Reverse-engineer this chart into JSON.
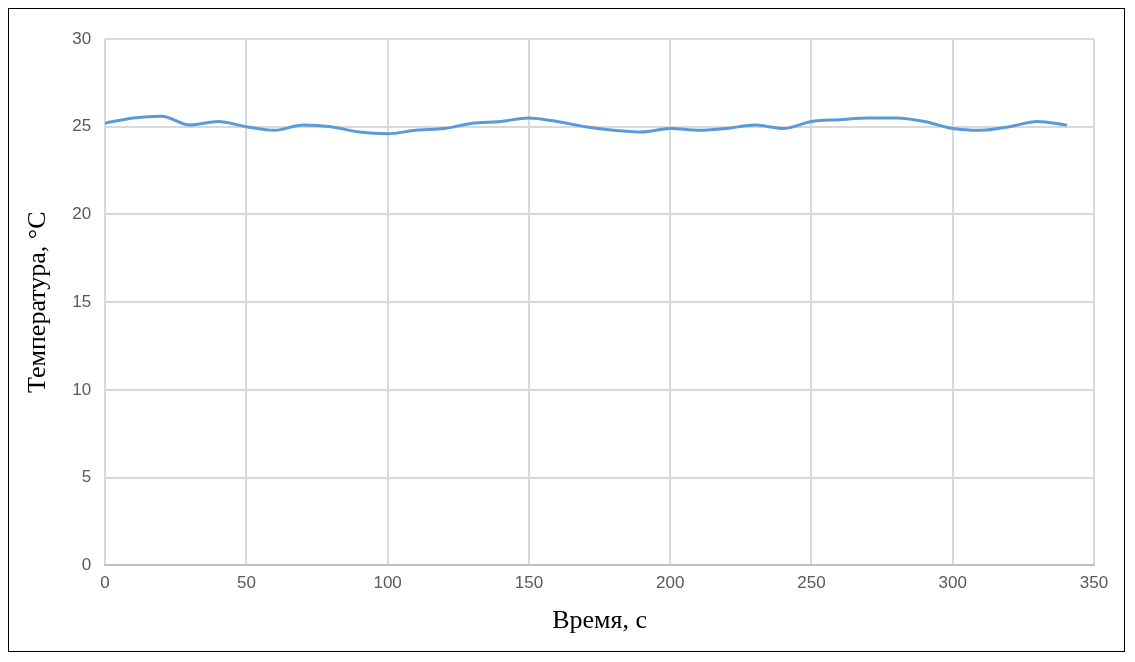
{
  "chart_data": {
    "type": "line",
    "xlabel": "Время, с",
    "ylabel": "Температура, °С",
    "x": [
      0,
      10,
      20,
      30,
      40,
      50,
      60,
      70,
      80,
      90,
      100,
      110,
      120,
      130,
      140,
      150,
      160,
      170,
      180,
      190,
      200,
      210,
      220,
      230,
      240,
      250,
      260,
      270,
      280,
      290,
      300,
      310,
      320,
      330,
      340
    ],
    "series": [
      {
        "color": "#5b9bd5",
        "values": [
          25.2,
          25.5,
          25.6,
          25.1,
          25.3,
          25.0,
          24.8,
          25.1,
          25.0,
          24.7,
          24.6,
          24.8,
          24.9,
          25.2,
          25.3,
          25.5,
          25.3,
          25.0,
          24.8,
          24.7,
          24.9,
          24.8,
          24.9,
          25.1,
          24.9,
          25.3,
          25.4,
          25.5,
          25.5,
          25.3,
          24.9,
          24.8,
          25.0,
          25.3,
          25.1
        ]
      }
    ],
    "xlim": [
      0,
      350
    ],
    "xticks": [
      0,
      50,
      100,
      150,
      200,
      250,
      300,
      350
    ],
    "ylim": [
      0,
      30
    ],
    "yticks": [
      0,
      5,
      10,
      15,
      20,
      25,
      30
    ],
    "grid": true,
    "legend": false,
    "marker": "none",
    "line_style": "solid"
  }
}
